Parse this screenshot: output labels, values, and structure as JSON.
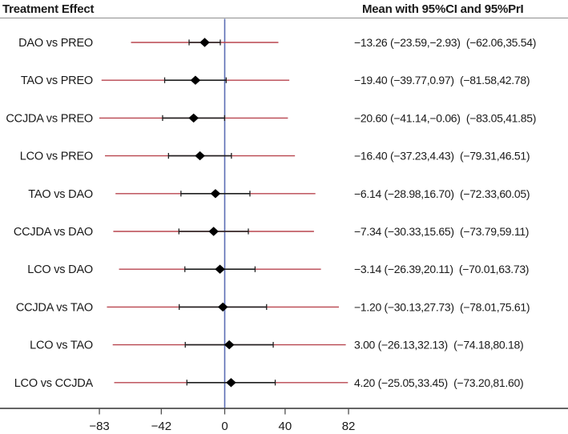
{
  "chart_data": {
    "type": "forest",
    "title_left": "Treatment Effect",
    "title_right": "Mean with 95%CI and 95%PrI",
    "null_line_value": 0,
    "x_axis": {
      "tick_values": [
        -83,
        -42,
        0,
        40,
        82
      ],
      "tick_labels": [
        "−83",
        "−42",
        "0",
        "40",
        "82"
      ],
      "range": [
        -148,
        227
      ]
    },
    "rows": [
      {
        "label": "DAO vs PREO",
        "mean": -13.26,
        "ci": [
          -23.59,
          -2.93
        ],
        "pri": [
          -62.06,
          35.54
        ],
        "display": "−13.26 (−23.59,−2.93)  (−62.06,35.54)"
      },
      {
        "label": "TAO vs PREO",
        "mean": -19.4,
        "ci": [
          -39.77,
          0.97
        ],
        "pri": [
          -81.58,
          42.78
        ],
        "display": "−19.40 (−39.77,0.97)  (−81.58,42.78)"
      },
      {
        "label": "CCJDA vs PREO",
        "mean": -20.6,
        "ci": [
          -41.14,
          -0.06
        ],
        "pri": [
          -83.05,
          41.85
        ],
        "display": "−20.60 (−41.14,−0.06)  (−83.05,41.85)"
      },
      {
        "label": "LCO vs PREO",
        "mean": -16.4,
        "ci": [
          -37.23,
          4.43
        ],
        "pri": [
          -79.31,
          46.51
        ],
        "display": "−16.40 (−37.23,4.43)  (−79.31,46.51)"
      },
      {
        "label": "TAO vs DAO",
        "mean": -6.14,
        "ci": [
          -28.98,
          16.7
        ],
        "pri": [
          -72.33,
          60.05
        ],
        "display": "−6.14 (−28.98,16.70)  (−72.33,60.05)"
      },
      {
        "label": "CCJDA vs DAO",
        "mean": -7.34,
        "ci": [
          -30.33,
          15.65
        ],
        "pri": [
          -73.79,
          59.11
        ],
        "display": "−7.34 (−30.33,15.65)  (−73.79,59.11)"
      },
      {
        "label": "LCO vs DAO",
        "mean": -3.14,
        "ci": [
          -26.39,
          20.11
        ],
        "pri": [
          -70.01,
          63.73
        ],
        "display": "−3.14 (−26.39,20.11)  (−70.01,63.73)"
      },
      {
        "label": "CCJDA vs TAO",
        "mean": -1.2,
        "ci": [
          -30.13,
          27.73
        ],
        "pri": [
          -78.01,
          75.61
        ],
        "display": "−1.20 (−30.13,27.73)  (−78.01,75.61)"
      },
      {
        "label": "LCO vs TAO",
        "mean": 3.0,
        "ci": [
          -26.13,
          32.13
        ],
        "pri": [
          -74.18,
          80.18
        ],
        "display": "3.00 (−26.13,32.13)  (−74.18,80.18)"
      },
      {
        "label": "LCO vs CCJDA",
        "mean": 4.2,
        "ci": [
          -25.05,
          33.45
        ],
        "pri": [
          -73.2,
          81.6
        ],
        "display": "4.20 (−25.05,33.45)  (−73.20,81.60)"
      }
    ],
    "colors": {
      "pri_line": "#b8454f",
      "ci_line": "#1f1f1f",
      "diamond": "#000000",
      "null_line": "#5b6db4",
      "axis_line": "#4f4f4f",
      "header_rule": "#8f8f8f",
      "text": "#1a1a1a"
    },
    "legend_position": "none",
    "grid": false
  }
}
